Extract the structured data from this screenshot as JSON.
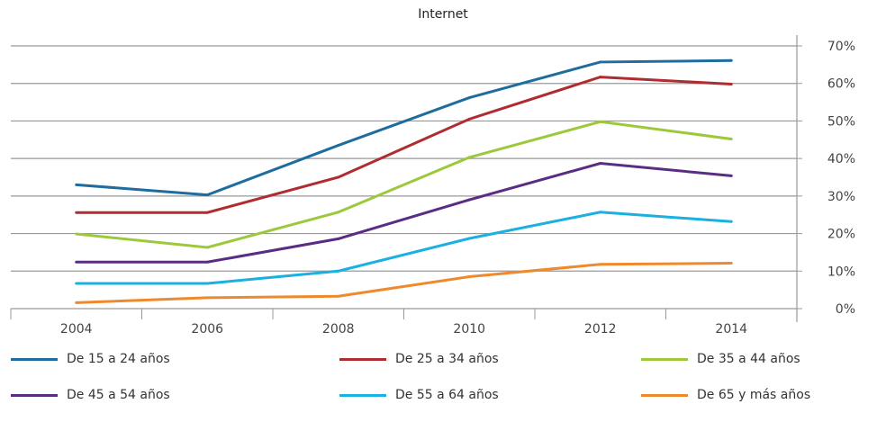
{
  "chart_data": {
    "type": "line",
    "title": "Internet",
    "categories": [
      "2004",
      "2006",
      "2008",
      "2010",
      "2012",
      "2014"
    ],
    "ylim": [
      0,
      70
    ],
    "yticks": [
      "0%",
      "10%",
      "20%",
      "30%",
      "40%",
      "50%",
      "60%",
      "70%"
    ],
    "y_axis_position": "right",
    "grid": true,
    "legend_position": "bottom",
    "series": [
      {
        "name": "De 15 a 24 años",
        "color": "#1f6c9e",
        "values": [
          33,
          30.3,
          43.5,
          56.2,
          65.7,
          66.1
        ]
      },
      {
        "name": "De 25 a 34 años",
        "color": "#b02c30",
        "values": [
          25.6,
          25.6,
          35,
          50.5,
          61.7,
          59.8
        ]
      },
      {
        "name": "De 35 a 44 años",
        "color": "#9ec83c",
        "values": [
          19.9,
          16.3,
          25.7,
          40.3,
          49.8,
          45.2
        ]
      },
      {
        "name": "De 45 a 54 años",
        "color": "#5a2d84",
        "values": [
          12.4,
          12.4,
          18.6,
          29,
          38.7,
          35.4
        ]
      },
      {
        "name": "De 55 a 64 años",
        "color": "#1ab0e0",
        "values": [
          6.7,
          6.7,
          10,
          18.7,
          25.7,
          23.2
        ]
      },
      {
        "name": "De 65 y más años",
        "color": "#ee8a2e",
        "values": [
          1.6,
          2.9,
          3.3,
          8.5,
          11.8,
          12.1
        ]
      }
    ]
  }
}
